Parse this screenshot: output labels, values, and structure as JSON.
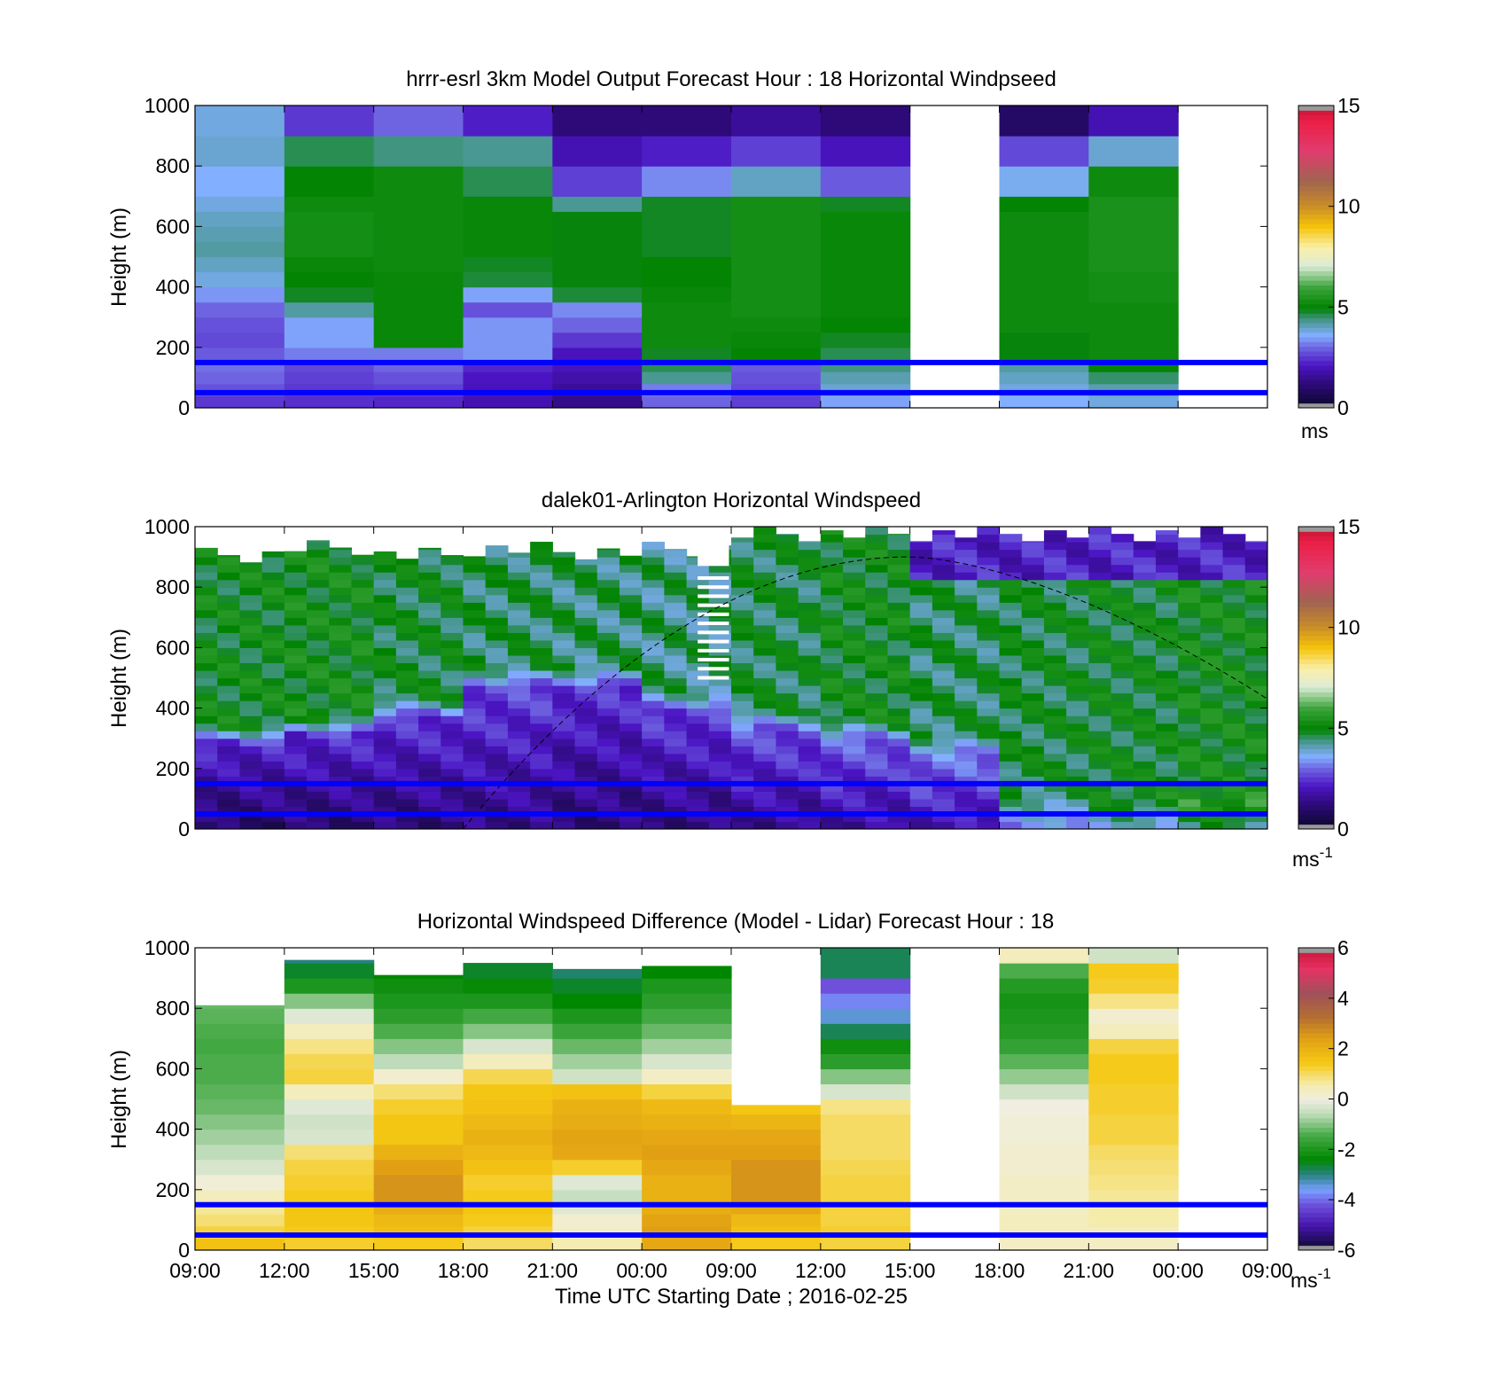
{
  "x_tick_labels": [
    "09:00",
    "12:00",
    "15:00",
    "18:00",
    "21:00",
    "00:00",
    "09:00",
    "12:00",
    "15:00",
    "18:00",
    "21:00",
    "00:00",
    "09:00"
  ],
  "xlabel": "Time UTC  Starting Date ; 2016-02-25",
  "colors": {
    "reference_lines": "#0000ff",
    "frame": "#000000",
    "missing": "#ffffff"
  },
  "chart_data": [
    {
      "type": "heatmap",
      "title": "hrrr-esrl 3km Model Output   Forecast Hour : 18 Horizontal Windpseed",
      "ylabel": "Height (m)",
      "ylim": [
        0,
        1000
      ],
      "yticks": [
        0,
        200,
        400,
        600,
        800,
        1000
      ],
      "colorbar": {
        "range": [
          0,
          15
        ],
        "ticks": [
          0,
          5,
          10,
          15
        ],
        "unit": "ms",
        "unit_sup": "",
        "palette": "windspeed"
      },
      "reference_lines_m": [
        150,
        50
      ],
      "heights_m": [
        0,
        40,
        80,
        120,
        160,
        200,
        250,
        300,
        350,
        400,
        450,
        500,
        550,
        600,
        650,
        700,
        800,
        900,
        1000
      ],
      "columns": [
        {
          "values": [
            2.5,
            2.8,
            3.0,
            3.1,
            2.9,
            2.7,
            2.8,
            3.0,
            3.4,
            3.8,
            4.0,
            4.2,
            4.1,
            4.0,
            3.8,
            3.6,
            3.9,
            3.8
          ]
        },
        {
          "values": [
            2.4,
            2.5,
            2.6,
            2.7,
            3.2,
            3.5,
            3.5,
            4.2,
            4.8,
            5.0,
            5.1,
            5.3,
            5.3,
            5.3,
            5.2,
            5.0,
            4.6,
            2.5
          ]
        },
        {
          "values": [
            2.3,
            2.6,
            2.8,
            3.0,
            3.2,
            5.1,
            5.1,
            5.1,
            5.1,
            5.1,
            5.2,
            5.2,
            5.2,
            5.2,
            5.2,
            5.2,
            4.4,
            3.0
          ]
        },
        {
          "values": [
            1.9,
            2.0,
            2.1,
            2.3,
            3.4,
            3.4,
            3.4,
            2.8,
            3.5,
            4.7,
            4.8,
            5.1,
            5.1,
            5.1,
            5.1,
            4.6,
            4.3,
            2.2
          ]
        },
        {
          "values": [
            1.4,
            1.6,
            1.8,
            2.0,
            2.0,
            2.5,
            3.0,
            3.3,
            4.7,
            4.9,
            4.9,
            4.9,
            4.9,
            4.9,
            4.3,
            2.6,
            1.9,
            1.2
          ]
        },
        {
          "values": [
            3.0,
            3.2,
            4.3,
            4.6,
            4.8,
            5.2,
            5.2,
            5.2,
            5.1,
            5.0,
            5.0,
            4.8,
            4.8,
            4.8,
            4.8,
            3.3,
            2.2,
            1.2
          ]
        },
        {
          "values": [
            2.6,
            2.7,
            2.8,
            2.9,
            5.0,
            5.1,
            5.2,
            5.3,
            5.3,
            5.3,
            5.3,
            5.3,
            5.3,
            5.3,
            5.3,
            4.0,
            2.6,
            1.6
          ]
        },
        {
          "values": [
            3.5,
            3.9,
            4.1,
            4.4,
            4.6,
            4.8,
            5.0,
            5.1,
            5.1,
            5.1,
            5.1,
            5.1,
            5.1,
            5.1,
            4.8,
            2.9,
            2.0,
            1.2
          ]
        },
        {
          "values": null
        },
        {
          "values": [
            3.6,
            3.8,
            4.0,
            4.2,
            4.9,
            4.9,
            5.2,
            5.2,
            5.2,
            5.2,
            5.2,
            5.2,
            5.2,
            5.2,
            5.0,
            3.7,
            2.7,
            0.9
          ]
        },
        {
          "values": [
            3.8,
            4.1,
            4.5,
            5.0,
            5.2,
            5.2,
            5.2,
            5.2,
            5.3,
            5.3,
            5.4,
            5.4,
            5.4,
            5.4,
            5.4,
            5.2,
            3.9,
            1.9
          ]
        },
        {
          "values": null
        }
      ]
    },
    {
      "type": "heatmap",
      "title": "dalek01-Arlington  Horizontal Windspeed",
      "ylabel": "Height (m)",
      "ylim": [
        0,
        1000
      ],
      "yticks": [
        0,
        200,
        400,
        600,
        800,
        1000
      ],
      "colorbar": {
        "range": [
          0,
          15
        ],
        "ticks": [
          0,
          5,
          10,
          15
        ],
        "unit": "ms",
        "unit_sup": "-1",
        "palette": "windspeed"
      },
      "reference_lines_m": [
        150,
        50
      ],
      "heights_m": [
        0,
        25,
        50,
        75,
        100,
        125,
        150,
        175,
        200,
        225,
        250,
        275,
        300,
        325,
        350,
        375,
        400,
        425,
        450,
        475,
        500,
        525,
        550,
        575,
        600,
        625,
        650,
        675,
        700,
        725,
        750,
        775,
        800,
        825,
        850,
        875,
        900,
        925,
        950,
        975,
        1000
      ],
      "columns_per_block": 4,
      "blocks": [
        {
          "low": 0.9,
          "boundary_m": 280,
          "upper": 5.0,
          "top_m": 930
        },
        {
          "low": 1.0,
          "boundary_m": 310,
          "upper": 5.1,
          "top_m": 955
        },
        {
          "low": 1.1,
          "boundary_m": 370,
          "upper": 4.8,
          "top_m": 930
        },
        {
          "low": 1.3,
          "boundary_m": 470,
          "upper": 4.6,
          "top_m": 950
        },
        {
          "low": 1.1,
          "boundary_m": 470,
          "upper": 4.5,
          "top_m": 940
        },
        {
          "low": 1.2,
          "boundary_m": 390,
          "upper": 4.4,
          "top_m": 950
        },
        {
          "low": 1.4,
          "boundary_m": 330,
          "upper": 4.7,
          "top_m": 1000
        },
        {
          "low": 1.6,
          "boundary_m": 300,
          "upper": 5.0,
          "top_m": 1000
        },
        {
          "low": 1.8,
          "boundary_m": 250,
          "upper": 4.6,
          "top_m": 1000
        },
        {
          "low": 3.2,
          "boundary_m": 120,
          "upper": 4.8,
          "top_m": 1000
        },
        {
          "low": 3.7,
          "boundary_m": 100,
          "upper": 4.9,
          "top_m": 1000
        },
        {
          "low": 4.3,
          "boundary_m": 80,
          "upper": 5.1,
          "top_m": 1000
        }
      ],
      "gap_block": {
        "after_block": 5,
        "solid_top_m": [
          870,
          1000
        ],
        "stripes_from_m": [
          500,
          850
        ]
      },
      "upper_layer": {
        "from_block": 8,
        "speed": 2.2,
        "from_m": 820
      },
      "curve": {
        "x_start": 3.0,
        "x_end": 12.0,
        "y_start_m": 0,
        "y_peak_m": 900,
        "x_peak": 8.0,
        "y_end_m": 430,
        "style": "dashed"
      }
    },
    {
      "type": "heatmap",
      "title": "Horizontal Windspeed Difference (Model - Lidar) Forecast Hour : 18",
      "ylabel": "Height (m)",
      "ylim": [
        0,
        1000
      ],
      "yticks": [
        0,
        200,
        400,
        600,
        800,
        1000
      ],
      "colorbar": {
        "range": [
          -6,
          6
        ],
        "ticks": [
          -6,
          -4,
          -2,
          0,
          2,
          4,
          6
        ],
        "unit": "ms",
        "unit_sup": "-1",
        "palette": "difference"
      },
      "reference_lines_m": [
        150,
        50
      ],
      "heights_m": [
        0,
        40,
        80,
        120,
        160,
        200,
        250,
        300,
        350,
        400,
        450,
        500,
        550,
        600,
        650,
        700,
        750,
        800,
        850,
        900,
        950,
        1000
      ],
      "columns": [
        {
          "top_m": 810,
          "values": [
            1.6,
            1.2,
            0.9,
            0.7,
            0.4,
            0.1,
            -0.3,
            -0.6,
            -0.8,
            -1.0,
            -1.2,
            -1.3,
            -1.4,
            -1.4,
            -1.5,
            -1.4,
            -1.3,
            -1.2,
            null,
            null,
            null
          ]
        },
        {
          "top_m": 960,
          "values": [
            1.3,
            1.4,
            1.5,
            1.5,
            1.4,
            1.3,
            1.2,
            0.9,
            -0.3,
            -0.4,
            -0.2,
            0.4,
            1.2,
            1.1,
            0.8,
            0.4,
            -0.2,
            -1.0,
            -2.0,
            -2.6,
            -3.0
          ]
        },
        {
          "top_m": 910,
          "values": [
            1.4,
            1.7,
            1.8,
            2.1,
            2.6,
            2.6,
            2.4,
            2.0,
            1.5,
            1.5,
            1.3,
            0.9,
            0.2,
            -0.6,
            -1.0,
            -1.4,
            -1.8,
            -2.0,
            -2.2,
            -2.4,
            null
          ]
        },
        {
          "top_m": 960,
          "values": [
            1.0,
            1.2,
            1.4,
            1.5,
            1.4,
            1.3,
            1.6,
            1.8,
            2.0,
            1.8,
            1.6,
            1.5,
            1.1,
            0.4,
            -0.3,
            -1.0,
            -1.5,
            -2.0,
            -2.3,
            -2.6,
            null
          ]
        },
        {
          "top_m": 930,
          "values": [
            0.5,
            0.3,
            0.2,
            -0.2,
            -0.5,
            -0.2,
            1.3,
            2.2,
            2.3,
            2.1,
            2.0,
            1.6,
            -0.4,
            -0.8,
            -1.2,
            -1.6,
            -2.0,
            -2.4,
            -2.6,
            -2.9,
            null
          ]
        },
        {
          "top_m": 940,
          "values": [
            2.2,
            2.4,
            2.3,
            2.1,
            2.0,
            2.0,
            2.2,
            2.4,
            2.2,
            2.0,
            1.8,
            1.2,
            0.3,
            -0.3,
            -0.8,
            -1.2,
            -1.5,
            -1.8,
            -2.0,
            -2.4,
            null
          ]
        },
        {
          "top_m": 480,
          "values": [
            1.4,
            1.6,
            1.8,
            2.2,
            2.6,
            2.6,
            2.6,
            2.4,
            2.2,
            1.9,
            1.5,
            null,
            null,
            null,
            null,
            null,
            null,
            null,
            null,
            null,
            null
          ]
        },
        {
          "top_m": 1000,
          "values": [
            1.2,
            1.3,
            1.2,
            1.2,
            1.2,
            1.2,
            1.1,
            1.0,
            1.0,
            1.0,
            0.8,
            -0.3,
            -1.0,
            -1.8,
            -2.2,
            -2.8,
            -3.4,
            -3.8,
            -4.2,
            -2.8,
            -2.8
          ]
        },
        {
          "top_m": 0,
          "values": null
        },
        {
          "top_m": 1000,
          "values": [
            0.3,
            0.4,
            0.4,
            0.3,
            0.3,
            0.3,
            0.2,
            0.2,
            0.1,
            0.1,
            0.0,
            -0.4,
            -0.9,
            -1.3,
            -1.7,
            -1.9,
            -2.0,
            -2.1,
            -1.9,
            -1.4,
            0.4
          ]
        },
        {
          "top_m": 1000,
          "values": [
            0.3,
            0.4,
            0.6,
            0.6,
            0.7,
            0.8,
            0.9,
            1.0,
            1.2,
            1.2,
            1.3,
            1.3,
            1.4,
            1.4,
            1.2,
            0.4,
            0.2,
            0.8,
            1.3,
            1.4,
            -0.4
          ]
        },
        {
          "top_m": 0,
          "values": null
        }
      ]
    }
  ]
}
